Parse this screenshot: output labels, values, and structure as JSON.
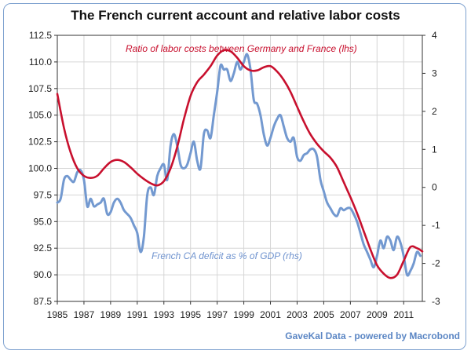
{
  "chart_data": {
    "type": "line",
    "title": "The French current account and relative labor costs",
    "source": "GaveKal Data - powered by Macrobond",
    "x_range": [
      1985,
      2012.4
    ],
    "x_ticks": [
      1985,
      1987,
      1989,
      1991,
      1993,
      1995,
      1997,
      1999,
      2001,
      2003,
      2005,
      2007,
      2009,
      2011
    ],
    "y_left": {
      "range": [
        87.5,
        112.5
      ],
      "ticks": [
        "87.5",
        "90.0",
        "92.5",
        "95.0",
        "97.5",
        "100.0",
        "102.5",
        "105.0",
        "107.5",
        "110.0",
        "112.5"
      ]
    },
    "y_right": {
      "range": [
        -3,
        4
      ],
      "ticks": [
        "-3",
        "-2",
        "-1",
        "0",
        "1",
        "2",
        "3",
        "4"
      ]
    },
    "grid": true,
    "series": [
      {
        "name": "Ratio of labor costs between Germany and France (lhs)",
        "axis": "left",
        "color": "#c8102e",
        "points": [
          [
            1985.0,
            107.0
          ],
          [
            1985.5,
            103.8
          ],
          [
            1986.0,
            101.5
          ],
          [
            1986.5,
            100.0
          ],
          [
            1987.0,
            99.3
          ],
          [
            1987.5,
            99.1
          ],
          [
            1988.0,
            99.3
          ],
          [
            1988.5,
            100.0
          ],
          [
            1989.0,
            100.6
          ],
          [
            1989.5,
            100.8
          ],
          [
            1990.0,
            100.6
          ],
          [
            1990.5,
            100.1
          ],
          [
            1991.0,
            99.5
          ],
          [
            1991.5,
            99.0
          ],
          [
            1992.0,
            98.6
          ],
          [
            1992.5,
            98.4
          ],
          [
            1993.0,
            98.8
          ],
          [
            1993.5,
            100.0
          ],
          [
            1994.0,
            102.0
          ],
          [
            1994.5,
            104.6
          ],
          [
            1995.0,
            106.8
          ],
          [
            1995.5,
            108.1
          ],
          [
            1996.0,
            108.8
          ],
          [
            1996.5,
            109.6
          ],
          [
            1997.0,
            110.6
          ],
          [
            1997.5,
            111.1
          ],
          [
            1998.0,
            111.0
          ],
          [
            1998.5,
            110.4
          ],
          [
            1999.0,
            109.6
          ],
          [
            1999.5,
            109.2
          ],
          [
            2000.0,
            109.2
          ],
          [
            2000.5,
            109.5
          ],
          [
            2001.0,
            109.6
          ],
          [
            2001.5,
            109.1
          ],
          [
            2002.0,
            108.3
          ],
          [
            2002.5,
            107.2
          ],
          [
            2003.0,
            105.8
          ],
          [
            2003.5,
            104.4
          ],
          [
            2004.0,
            103.2
          ],
          [
            2004.5,
            102.3
          ],
          [
            2005.0,
            101.6
          ],
          [
            2005.5,
            101.0
          ],
          [
            2006.0,
            100.1
          ],
          [
            2006.5,
            98.7
          ],
          [
            2007.0,
            97.3
          ],
          [
            2007.5,
            95.8
          ],
          [
            2008.0,
            94.1
          ],
          [
            2008.5,
            92.4
          ],
          [
            2009.0,
            90.9
          ],
          [
            2009.5,
            90.1
          ],
          [
            2010.0,
            89.7
          ],
          [
            2010.5,
            90.0
          ],
          [
            2011.0,
            91.3
          ],
          [
            2011.5,
            92.6
          ],
          [
            2012.0,
            92.5
          ],
          [
            2012.4,
            92.2
          ]
        ]
      },
      {
        "name": "French CA deficit as % of GDP (rhs)",
        "axis": "right",
        "color": "#7399d0",
        "points": [
          [
            1985.0,
            -0.4
          ],
          [
            1985.25,
            -0.3
          ],
          [
            1985.5,
            0.2
          ],
          [
            1985.75,
            0.3
          ],
          [
            1986.0,
            0.2
          ],
          [
            1986.25,
            0.15
          ],
          [
            1986.5,
            0.4
          ],
          [
            1986.75,
            0.45
          ],
          [
            1987.0,
            0.2
          ],
          [
            1987.25,
            -0.5
          ],
          [
            1987.5,
            -0.3
          ],
          [
            1987.75,
            -0.5
          ],
          [
            1988.0,
            -0.45
          ],
          [
            1988.25,
            -0.4
          ],
          [
            1988.5,
            -0.3
          ],
          [
            1988.75,
            -0.7
          ],
          [
            1989.0,
            -0.65
          ],
          [
            1989.25,
            -0.4
          ],
          [
            1989.5,
            -0.3
          ],
          [
            1989.75,
            -0.4
          ],
          [
            1990.0,
            -0.6
          ],
          [
            1990.25,
            -0.7
          ],
          [
            1990.5,
            -0.8
          ],
          [
            1990.75,
            -1.0
          ],
          [
            1991.0,
            -1.2
          ],
          [
            1991.25,
            -1.7
          ],
          [
            1991.5,
            -1.3
          ],
          [
            1991.75,
            -0.2
          ],
          [
            1992.0,
            0.0
          ],
          [
            1992.25,
            -0.2
          ],
          [
            1992.5,
            0.3
          ],
          [
            1992.75,
            0.5
          ],
          [
            1993.0,
            0.6
          ],
          [
            1993.25,
            0.2
          ],
          [
            1993.5,
            1.1
          ],
          [
            1993.75,
            1.4
          ],
          [
            1994.0,
            1.1
          ],
          [
            1994.25,
            0.6
          ],
          [
            1994.5,
            0.5
          ],
          [
            1994.75,
            0.6
          ],
          [
            1995.0,
            0.9
          ],
          [
            1995.25,
            1.2
          ],
          [
            1995.5,
            0.7
          ],
          [
            1995.75,
            0.5
          ],
          [
            1996.0,
            1.4
          ],
          [
            1996.25,
            1.5
          ],
          [
            1996.5,
            1.3
          ],
          [
            1996.75,
            1.9
          ],
          [
            1997.0,
            2.5
          ],
          [
            1997.25,
            3.2
          ],
          [
            1997.5,
            3.1
          ],
          [
            1997.75,
            3.1
          ],
          [
            1998.0,
            2.8
          ],
          [
            1998.25,
            3.0
          ],
          [
            1998.5,
            3.3
          ],
          [
            1998.75,
            3.1
          ],
          [
            1999.0,
            3.3
          ],
          [
            1999.25,
            3.5
          ],
          [
            1999.5,
            3.1
          ],
          [
            1999.75,
            2.3
          ],
          [
            2000.0,
            2.2
          ],
          [
            2000.25,
            1.9
          ],
          [
            2000.5,
            1.4
          ],
          [
            2000.75,
            1.1
          ],
          [
            2001.0,
            1.3
          ],
          [
            2001.25,
            1.6
          ],
          [
            2001.5,
            1.8
          ],
          [
            2001.75,
            1.9
          ],
          [
            2002.0,
            1.6
          ],
          [
            2002.25,
            1.3
          ],
          [
            2002.5,
            1.2
          ],
          [
            2002.75,
            1.3
          ],
          [
            2003.0,
            0.8
          ],
          [
            2003.25,
            0.7
          ],
          [
            2003.5,
            0.85
          ],
          [
            2003.75,
            0.9
          ],
          [
            2004.0,
            1.0
          ],
          [
            2004.25,
            1.0
          ],
          [
            2004.5,
            0.8
          ],
          [
            2004.75,
            0.2
          ],
          [
            2005.0,
            -0.1
          ],
          [
            2005.25,
            -0.4
          ],
          [
            2005.5,
            -0.55
          ],
          [
            2005.75,
            -0.7
          ],
          [
            2006.0,
            -0.75
          ],
          [
            2006.25,
            -0.55
          ],
          [
            2006.5,
            -0.6
          ],
          [
            2006.75,
            -0.55
          ],
          [
            2007.0,
            -0.55
          ],
          [
            2007.25,
            -0.7
          ],
          [
            2007.5,
            -0.9
          ],
          [
            2007.75,
            -1.2
          ],
          [
            2008.0,
            -1.5
          ],
          [
            2008.25,
            -1.7
          ],
          [
            2008.5,
            -1.9
          ],
          [
            2008.75,
            -2.1
          ],
          [
            2009.0,
            -1.8
          ],
          [
            2009.25,
            -1.4
          ],
          [
            2009.5,
            -1.6
          ],
          [
            2009.75,
            -1.3
          ],
          [
            2010.0,
            -1.4
          ],
          [
            2010.25,
            -1.65
          ],
          [
            2010.5,
            -1.3
          ],
          [
            2010.75,
            -1.45
          ],
          [
            2011.0,
            -1.8
          ],
          [
            2011.25,
            -2.3
          ],
          [
            2011.5,
            -2.2
          ],
          [
            2011.75,
            -2.0
          ],
          [
            2012.0,
            -1.7
          ],
          [
            2012.25,
            -1.8
          ]
        ]
      }
    ],
    "annotations": [
      {
        "text": "Ratio of labor costs between Germany and France (lhs)",
        "series": 0
      },
      {
        "text": "French CA deficit as % of GDP (rhs)",
        "series": 1
      }
    ]
  }
}
